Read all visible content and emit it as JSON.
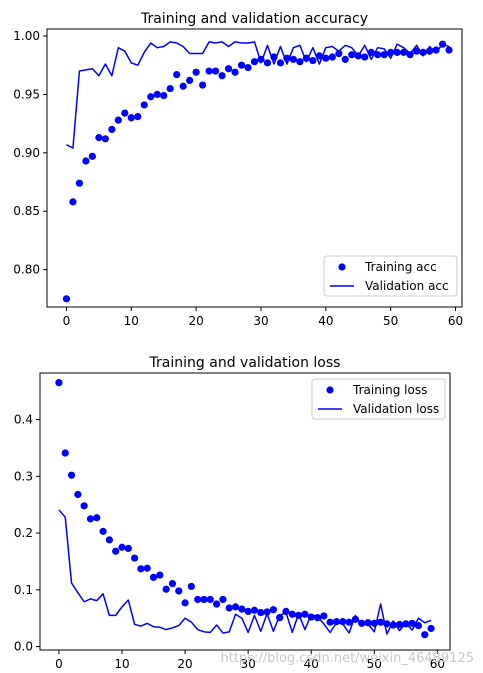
{
  "chart_data": [
    {
      "type": "line",
      "title": "Training and validation accuracy",
      "xlim": [
        -3,
        61
      ],
      "ylim": [
        0.768,
        1.006
      ],
      "xticks": [
        0,
        10,
        20,
        30,
        40,
        50,
        60
      ],
      "yticks": [
        0.8,
        0.85,
        0.9,
        0.95,
        1.0
      ],
      "ytick_labels": [
        "0.80",
        "0.85",
        "0.90",
        "0.95",
        "1.00"
      ],
      "legend_position": "lower-right",
      "series": [
        {
          "name": "Training acc",
          "style": "dots",
          "color": "#0000ff",
          "x": [
            0,
            1,
            2,
            3,
            4,
            5,
            6,
            7,
            8,
            9,
            10,
            11,
            12,
            13,
            14,
            15,
            16,
            17,
            18,
            19,
            20,
            21,
            22,
            23,
            24,
            25,
            26,
            27,
            28,
            29,
            30,
            31,
            32,
            33,
            34,
            35,
            36,
            37,
            38,
            39,
            40,
            41,
            42,
            43,
            44,
            45,
            46,
            47,
            48,
            49,
            50,
            51,
            52,
            53,
            54,
            55,
            56,
            57,
            58,
            59
          ],
          "values": [
            0.775,
            0.858,
            0.874,
            0.893,
            0.897,
            0.913,
            0.912,
            0.92,
            0.928,
            0.934,
            0.93,
            0.931,
            0.941,
            0.948,
            0.95,
            0.949,
            0.955,
            0.967,
            0.957,
            0.962,
            0.969,
            0.958,
            0.97,
            0.97,
            0.966,
            0.972,
            0.969,
            0.975,
            0.973,
            0.978,
            0.98,
            0.977,
            0.982,
            0.977,
            0.981,
            0.98,
            0.978,
            0.981,
            0.979,
            0.983,
            0.981,
            0.982,
            0.985,
            0.98,
            0.984,
            0.983,
            0.982,
            0.986,
            0.984,
            0.984,
            0.986,
            0.986,
            0.986,
            0.984,
            0.987,
            0.986,
            0.987,
            0.988,
            0.993,
            0.988
          ]
        },
        {
          "name": "Validation acc",
          "style": "line",
          "color": "#0000ff",
          "x": [
            0,
            1,
            2,
            3,
            4,
            5,
            6,
            7,
            8,
            9,
            10,
            11,
            12,
            13,
            14,
            15,
            16,
            17,
            18,
            19,
            20,
            21,
            22,
            23,
            24,
            25,
            26,
            27,
            28,
            29,
            30,
            31,
            32,
            33,
            34,
            35,
            36,
            37,
            38,
            39,
            40,
            41,
            42,
            43,
            44,
            45,
            46,
            47,
            48,
            49,
            50,
            51,
            52,
            53,
            54,
            55,
            56,
            57,
            58,
            59
          ],
          "values": [
            0.907,
            0.904,
            0.97,
            0.971,
            0.972,
            0.966,
            0.976,
            0.966,
            0.99,
            0.987,
            0.977,
            0.975,
            0.986,
            0.994,
            0.99,
            0.991,
            0.995,
            0.994,
            0.991,
            0.985,
            0.985,
            0.985,
            0.995,
            0.994,
            0.995,
            0.991,
            0.995,
            0.994,
            0.994,
            0.995,
            0.977,
            0.992,
            0.976,
            0.991,
            0.976,
            0.99,
            0.992,
            0.978,
            0.99,
            0.976,
            0.99,
            0.991,
            0.987,
            0.992,
            0.99,
            0.983,
            0.992,
            0.98,
            0.99,
            0.989,
            0.981,
            0.993,
            0.99,
            0.985,
            0.992,
            0.983,
            0.991,
            0.986,
            0.993,
            0.991
          ]
        }
      ]
    },
    {
      "type": "line",
      "title": "Training and validation loss",
      "xlim": [
        -3,
        62
      ],
      "ylim": [
        -0.006,
        0.482
      ],
      "xticks": [
        0,
        10,
        20,
        30,
        40,
        50,
        60
      ],
      "yticks": [
        0.0,
        0.1,
        0.2,
        0.3,
        0.4
      ],
      "ytick_labels": [
        "0.0",
        "0.1",
        "0.2",
        "0.3",
        "0.4"
      ],
      "legend_position": "upper-right",
      "series": [
        {
          "name": "Training loss",
          "style": "dots",
          "color": "#0000ff",
          "x": [
            0,
            1,
            2,
            3,
            4,
            5,
            6,
            7,
            8,
            9,
            10,
            11,
            12,
            13,
            14,
            15,
            16,
            17,
            18,
            19,
            20,
            21,
            22,
            23,
            24,
            25,
            26,
            27,
            28,
            29,
            30,
            31,
            32,
            33,
            34,
            35,
            36,
            37,
            38,
            39,
            40,
            41,
            42,
            43,
            44,
            45,
            46,
            47,
            48,
            49,
            50,
            51,
            52,
            53,
            54,
            55,
            56,
            57,
            58,
            59
          ],
          "values": [
            0.465,
            0.341,
            0.302,
            0.268,
            0.248,
            0.225,
            0.227,
            0.203,
            0.188,
            0.168,
            0.175,
            0.173,
            0.156,
            0.137,
            0.138,
            0.122,
            0.126,
            0.101,
            0.111,
            0.098,
            0.077,
            0.106,
            0.083,
            0.083,
            0.083,
            0.075,
            0.083,
            0.068,
            0.07,
            0.066,
            0.062,
            0.064,
            0.06,
            0.061,
            0.065,
            0.051,
            0.062,
            0.057,
            0.055,
            0.057,
            0.052,
            0.051,
            0.054,
            0.043,
            0.044,
            0.044,
            0.043,
            0.048,
            0.041,
            0.042,
            0.041,
            0.043,
            0.04,
            0.038,
            0.039,
            0.04,
            0.041,
            0.037,
            0.021,
            0.032
          ]
        },
        {
          "name": "Validation loss",
          "style": "line",
          "color": "#0000ff",
          "x": [
            0,
            1,
            2,
            3,
            4,
            5,
            6,
            7,
            8,
            9,
            10,
            11,
            12,
            13,
            14,
            15,
            16,
            17,
            18,
            19,
            20,
            21,
            22,
            23,
            24,
            25,
            26,
            27,
            28,
            29,
            30,
            31,
            32,
            33,
            34,
            35,
            36,
            37,
            38,
            39,
            40,
            41,
            42,
            43,
            44,
            45,
            46,
            47,
            48,
            49,
            50,
            51,
            52,
            53,
            54,
            55,
            56,
            57,
            58,
            59
          ],
          "values": [
            0.241,
            0.228,
            0.112,
            0.095,
            0.079,
            0.084,
            0.081,
            0.093,
            0.055,
            0.055,
            0.07,
            0.082,
            0.039,
            0.036,
            0.041,
            0.035,
            0.034,
            0.03,
            0.033,
            0.037,
            0.05,
            0.043,
            0.03,
            0.026,
            0.025,
            0.038,
            0.024,
            0.026,
            0.057,
            0.05,
            0.025,
            0.055,
            0.027,
            0.058,
            0.027,
            0.055,
            0.06,
            0.025,
            0.058,
            0.03,
            0.056,
            0.053,
            0.04,
            0.025,
            0.042,
            0.04,
            0.024,
            0.055,
            0.038,
            0.04,
            0.026,
            0.075,
            0.022,
            0.045,
            0.028,
            0.042,
            0.029,
            0.05,
            0.042,
            0.046
          ]
        }
      ]
    }
  ],
  "watermark": "https://blog.csdn.net/weixin_46489125"
}
